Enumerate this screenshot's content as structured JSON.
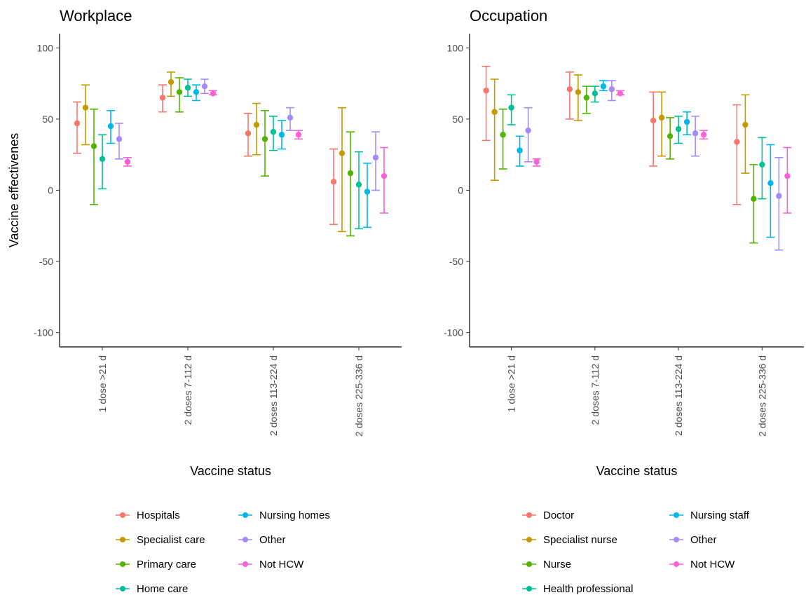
{
  "chart_data": [
    {
      "type": "scatter",
      "title": "Workplace",
      "xlabel": "Vaccine status",
      "ylabel": "Vaccine effectivenes",
      "ylim": [
        -110,
        110
      ],
      "yticks": [
        100,
        50,
        0,
        -50,
        -100
      ],
      "categories": [
        "1 dose >21 d",
        "2 doses 7-112 d",
        "2 doses 113-224 d",
        "2 doses 225-336 d"
      ],
      "grid": false,
      "legend_position": "bottom",
      "series": [
        {
          "name": "Hospitals",
          "color": "#F8766D",
          "points": [
            {
              "y": 47,
              "lo": 26,
              "hi": 62
            },
            {
              "y": 65,
              "lo": 55,
              "hi": 74
            },
            {
              "y": 40,
              "lo": 24,
              "hi": 54
            },
            {
              "y": 6,
              "lo": -24,
              "hi": 29
            }
          ]
        },
        {
          "name": "Specialist care",
          "color": "#C49A00",
          "points": [
            {
              "y": 58,
              "lo": 32,
              "hi": 74
            },
            {
              "y": 76,
              "lo": 66,
              "hi": 83
            },
            {
              "y": 46,
              "lo": 25,
              "hi": 61
            },
            {
              "y": 26,
              "lo": -29,
              "hi": 58
            }
          ]
        },
        {
          "name": "Primary care",
          "color": "#53B400",
          "points": [
            {
              "y": 31,
              "lo": -10,
              "hi": 57
            },
            {
              "y": 69,
              "lo": 55,
              "hi": 79
            },
            {
              "y": 36,
              "lo": 10,
              "hi": 56
            },
            {
              "y": 12,
              "lo": -32,
              "hi": 41
            }
          ]
        },
        {
          "name": "Home care",
          "color": "#00C094",
          "points": [
            {
              "y": 22,
              "lo": 1,
              "hi": 39
            },
            {
              "y": 72,
              "lo": 66,
              "hi": 78
            },
            {
              "y": 41,
              "lo": 28,
              "hi": 52
            },
            {
              "y": 4,
              "lo": -27,
              "hi": 27
            }
          ]
        },
        {
          "name": "Nursing homes",
          "color": "#00B6EB",
          "points": [
            {
              "y": 45,
              "lo": 33,
              "hi": 56
            },
            {
              "y": 69,
              "lo": 63,
              "hi": 74
            },
            {
              "y": 39,
              "lo": 29,
              "hi": 49
            },
            {
              "y": -1,
              "lo": -26,
              "hi": 19
            }
          ]
        },
        {
          "name": "Other",
          "color": "#A58AFF",
          "points": [
            {
              "y": 36,
              "lo": 22,
              "hi": 47
            },
            {
              "y": 73,
              "lo": 68,
              "hi": 78
            },
            {
              "y": 51,
              "lo": 42,
              "hi": 58
            },
            {
              "y": 23,
              "lo": 0,
              "hi": 41
            }
          ]
        },
        {
          "name": "Not HCW",
          "color": "#FB61D7",
          "points": [
            {
              "y": 20,
              "lo": 17,
              "hi": 23
            },
            {
              "y": 68,
              "lo": 67,
              "hi": 70
            },
            {
              "y": 39,
              "lo": 36,
              "hi": 42
            },
            {
              "y": 10,
              "lo": -16,
              "hi": 30
            }
          ]
        }
      ]
    },
    {
      "type": "scatter",
      "title": "Occupation",
      "xlabel": "Vaccine status",
      "ylabel": "",
      "ylim": [
        -110,
        110
      ],
      "yticks": [
        100,
        50,
        0,
        -50,
        -100
      ],
      "categories": [
        "1 dose >21 d",
        "2 doses 7-112 d",
        "2 doses 113-224 d",
        "2 doses 225-336 d"
      ],
      "grid": false,
      "legend_position": "bottom",
      "series": [
        {
          "name": "Doctor",
          "color": "#F8766D",
          "points": [
            {
              "y": 70,
              "lo": 35,
              "hi": 87
            },
            {
              "y": 71,
              "lo": 50,
              "hi": 83
            },
            {
              "y": 49,
              "lo": 17,
              "hi": 69
            },
            {
              "y": 34,
              "lo": -10,
              "hi": 60
            }
          ]
        },
        {
          "name": "Specialist nurse",
          "color": "#C49A00",
          "points": [
            {
              "y": 55,
              "lo": 7,
              "hi": 78
            },
            {
              "y": 69,
              "lo": 49,
              "hi": 81
            },
            {
              "y": 51,
              "lo": 24,
              "hi": 69
            },
            {
              "y": 46,
              "lo": 12,
              "hi": 67
            }
          ]
        },
        {
          "name": "Nurse",
          "color": "#53B400",
          "points": [
            {
              "y": 39,
              "lo": 15,
              "hi": 57
            },
            {
              "y": 65,
              "lo": 54,
              "hi": 73
            },
            {
              "y": 38,
              "lo": 22,
              "hi": 51
            },
            {
              "y": -6,
              "lo": -37,
              "hi": 18
            }
          ]
        },
        {
          "name": "Health professional",
          "color": "#00C094",
          "points": [
            {
              "y": 58,
              "lo": 46,
              "hi": 67
            },
            {
              "y": 68,
              "lo": 62,
              "hi": 73
            },
            {
              "y": 43,
              "lo": 33,
              "hi": 52
            },
            {
              "y": 18,
              "lo": -6,
              "hi": 37
            }
          ]
        },
        {
          "name": "Nursing staff",
          "color": "#00B6EB",
          "points": [
            {
              "y": 28,
              "lo": 17,
              "hi": 38
            },
            {
              "y": 73,
              "lo": 70,
              "hi": 77
            },
            {
              "y": 48,
              "lo": 39,
              "hi": 55
            },
            {
              "y": 5,
              "lo": -33,
              "hi": 32
            }
          ]
        },
        {
          "name": "Other",
          "color": "#A58AFF",
          "points": [
            {
              "y": 42,
              "lo": 20,
              "hi": 58
            },
            {
              "y": 71,
              "lo": 63,
              "hi": 77
            },
            {
              "y": 40,
              "lo": 24,
              "hi": 52
            },
            {
              "y": -4,
              "lo": -42,
              "hi": 23
            }
          ]
        },
        {
          "name": "Not HCW",
          "color": "#FB61D7",
          "points": [
            {
              "y": 20,
              "lo": 17,
              "hi": 22
            },
            {
              "y": 68,
              "lo": 67,
              "hi": 70
            },
            {
              "y": 39,
              "lo": 36,
              "hi": 42
            },
            {
              "y": 10,
              "lo": -16,
              "hi": 30
            }
          ]
        }
      ]
    }
  ]
}
